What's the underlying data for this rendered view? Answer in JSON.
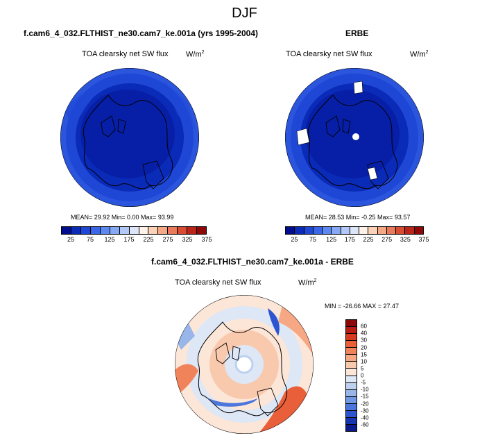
{
  "figure": {
    "season": "DJF",
    "left_title": "f.cam6_4_032.FLTHIST_ne30.cam7_ke.001a (yrs 1995-2004)",
    "right_title": "ERBE",
    "diff_title": "f.cam6_4_032.FLTHIST_ne30.cam7_ke.001a - ERBE"
  },
  "panels": {
    "left": {
      "variable": "TOA clearsky net SW flux",
      "units_base": "W/m",
      "units_exp": "2",
      "stats": "MEAN=  29.92  Min=   0.00  Max=  93.99"
    },
    "right": {
      "variable": "TOA clearsky net SW flux",
      "units_base": "W/m",
      "units_exp": "2",
      "stats": "MEAN=  28.53  Min=  -0.25  Max=  93.57"
    },
    "diff": {
      "variable": "TOA clearsky net SW flux",
      "units_base": "W/m",
      "units_exp": "2",
      "stats": "MIN = -26.66 MAX =  27.47"
    }
  },
  "colorbars": {
    "absolute": {
      "colors": [
        "#000d8c",
        "#0a2ab8",
        "#1f47d6",
        "#3a66ea",
        "#5c88f2",
        "#86a8f5",
        "#b2c8f7",
        "#dde6f9",
        "#fff2e8",
        "#fbd1b8",
        "#f4a886",
        "#ea7a5a",
        "#d84c33",
        "#bb241a",
        "#8f0707"
      ],
      "ticks": [
        "25",
        "75",
        "125",
        "175",
        "225",
        "275",
        "325",
        "375"
      ]
    },
    "difference": {
      "colors": [
        "#8a0808",
        "#b81c12",
        "#d83a20",
        "#e85f3a",
        "#f1835a",
        "#f6a783",
        "#f9c9ae",
        "#fce6d8",
        "#dde7f6",
        "#bcd0f0",
        "#98b6ea",
        "#7198e4",
        "#4b76dc",
        "#2c55cf",
        "#1534b0",
        "#0b1a8a"
      ],
      "ticks": [
        "60",
        "40",
        "30",
        "20",
        "15",
        "10",
        "5",
        "0",
        "-5",
        "-10",
        "-15",
        "-20",
        "-30",
        "-40",
        "-60"
      ]
    }
  }
}
